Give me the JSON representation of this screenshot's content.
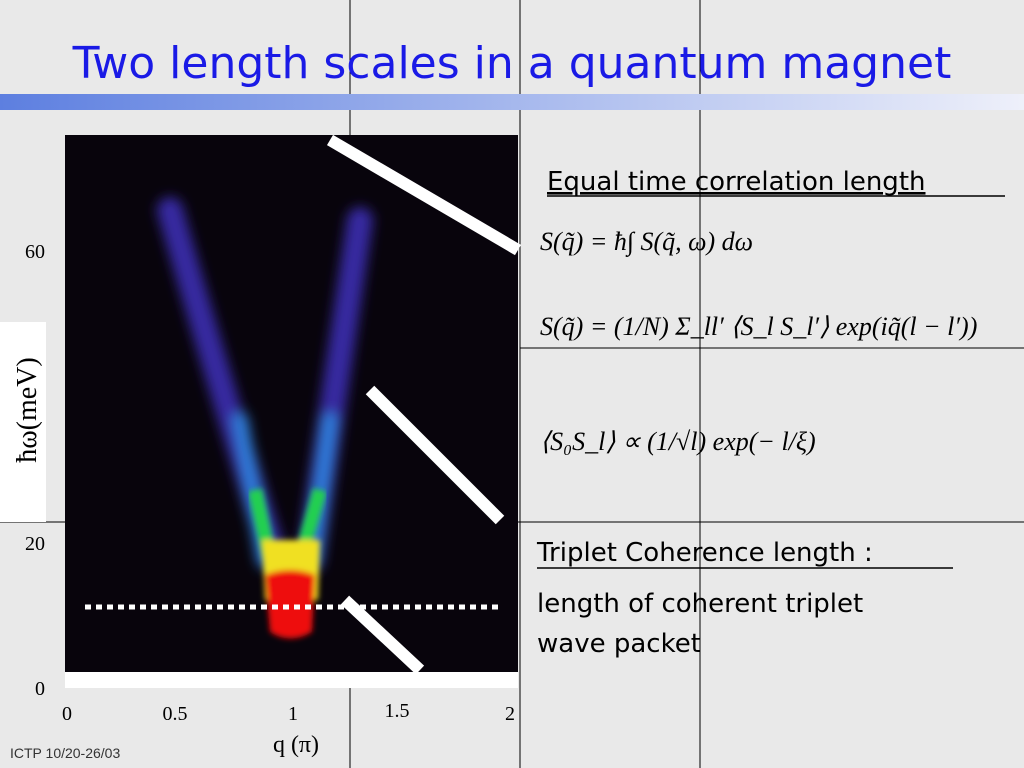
{
  "title": "Two length scales in a quantum magnet",
  "plot": {
    "y_label": "ħω(meV)",
    "x_label": "q (π)",
    "y_ticks": [
      "60",
      "20",
      "0"
    ],
    "x_ticks": [
      "0",
      "0.5",
      "1",
      "1.5",
      "2"
    ]
  },
  "section1": {
    "heading": "Equal time correlation length",
    "equations": [
      "S(q̃) = ħ∫ S(q̃, ω) dω",
      "S(q̃) = (1/N) Σ_ll′ ⟨S_l S_l′⟩ exp(iq̃(l − l′))",
      "⟨S₀S_l⟩ ∝ (1/√l) exp(− l/ξ)"
    ]
  },
  "section2": {
    "heading": "Triplet Coherence length :",
    "lines": [
      "length of coherent triplet",
      "wave packet"
    ]
  },
  "footer": "ICTP 10/20-26/03"
}
